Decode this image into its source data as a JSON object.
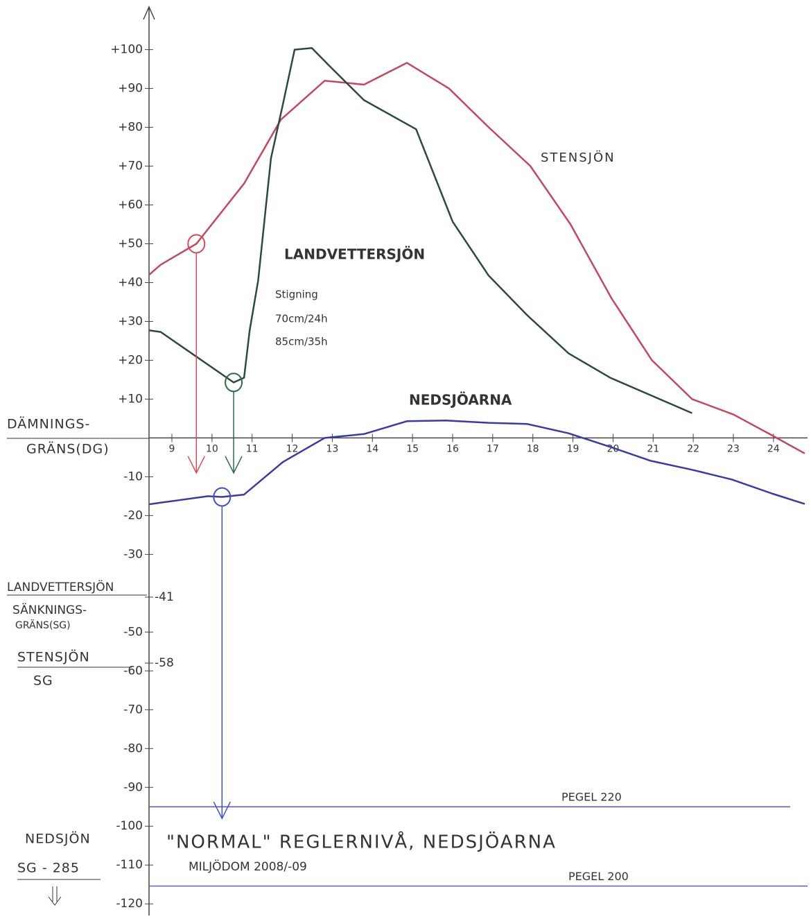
{
  "chart_data": {
    "type": "line",
    "xlim": [
      8.43,
      24.85
    ],
    "ylim": [
      -123,
      111
    ],
    "xticks": [
      9,
      10,
      11,
      12,
      13,
      14,
      15,
      16,
      17,
      18,
      19,
      20,
      21,
      22,
      23,
      24
    ],
    "yticks": [
      {
        "value": 100,
        "label": "+100"
      },
      {
        "value": 90,
        "label": "+90"
      },
      {
        "value": 80,
        "label": "+80"
      },
      {
        "value": 70,
        "label": "+70"
      },
      {
        "value": 60,
        "label": "+60"
      },
      {
        "value": 50,
        "label": "+50"
      },
      {
        "value": 40,
        "label": "+40"
      },
      {
        "value": 30,
        "label": "+30"
      },
      {
        "value": 20,
        "label": "+20"
      },
      {
        "value": 10,
        "label": "+10"
      },
      -10,
      -20,
      -30,
      -50,
      -60,
      -70,
      -80,
      -90,
      -100,
      -110,
      -120
    ],
    "grid": false,
    "series": [
      {
        "name": "STENSJÖN",
        "color": "#c4475e",
        "x": [
          8.43,
          8.72,
          9.61,
          10.8,
          11.72,
          12.81,
          13.79,
          14.86,
          15.91,
          16.9,
          17.94,
          18.94,
          19.96,
          20.97,
          21.97,
          23.01,
          23.96,
          24.78
        ],
        "values": [
          42,
          44.6,
          50,
          65.5,
          82,
          92,
          91,
          96.6,
          90,
          80,
          70,
          55,
          36,
          20,
          10,
          6,
          0.7,
          -4
        ]
      },
      {
        "name": "LANDVETTERSJÖN",
        "color": "#2c4a38",
        "x": [
          8.43,
          8.72,
          10.54,
          10.8,
          10.94,
          11.15,
          11.47,
          11.77,
          12.06,
          12.49,
          12.91,
          13.79,
          15.09,
          16.0,
          16.9,
          17.86,
          18.89,
          19.93,
          21.97
        ],
        "values": [
          27.7,
          27.3,
          14.3,
          15.5,
          27.7,
          40.5,
          72,
          86,
          100,
          100.4,
          96,
          87,
          79.5,
          55.7,
          41.8,
          31.6,
          21.8,
          15.5,
          6.4
        ]
      },
      {
        "name": "NEDSJÖARNA",
        "color": "#3a3aa6",
        "x": [
          8.43,
          8.78,
          9.9,
          10.25,
          10.8,
          11.77,
          12.81,
          13.79,
          14.86,
          15.83,
          16.9,
          17.86,
          18.89,
          19.93,
          20.94,
          21.97,
          22.96,
          23.96,
          24.78
        ],
        "values": [
          -17.1,
          -16.6,
          -15,
          -15.2,
          -14.6,
          -6.2,
          0,
          1,
          4.3,
          4.5,
          3.9,
          3.6,
          1.2,
          -2.3,
          -5.9,
          -8.2,
          -10.7,
          -14.3,
          -17
        ]
      }
    ],
    "highlights": [
      {
        "x": 9.61,
        "y": 50,
        "arrow_to": -9,
        "color": "#d94a5a"
      },
      {
        "x": 10.54,
        "y": 14.3,
        "arrow_to": -9,
        "color": "#2c6a44"
      },
      {
        "x": 10.25,
        "y": -15.2,
        "arrow_to": -98,
        "color": "#3a50d0"
      }
    ],
    "reference_lines": [
      {
        "value": -95,
        "label": "PEGEL 220"
      },
      {
        "value": -115.4,
        "label": "PEGEL 200"
      }
    ],
    "limit_marks": [
      -41,
      -58
    ],
    "left_labels": {
      "dg": [
        "DÄMNINGS-",
        "GRÄNS(DG)"
      ],
      "landvetter_sg": [
        "LANDVETTERSJÖN",
        "SÄNKNINGS-",
        "GRÄNS(SG)"
      ],
      "stensjon_sg": [
        "STENSJÖN",
        "SG"
      ],
      "nedsjon": "NEDSJÖN",
      "nedsjon_sg": "SG - 285"
    },
    "annotations": {
      "rise": [
        "Stigning",
        "70cm/24h",
        "85cm/35h"
      ],
      "normal": "\"NORMAL\" REGLERNIVÅ, NEDSJÖARNA",
      "court": "MILJÖDOM 2008/-09"
    }
  }
}
